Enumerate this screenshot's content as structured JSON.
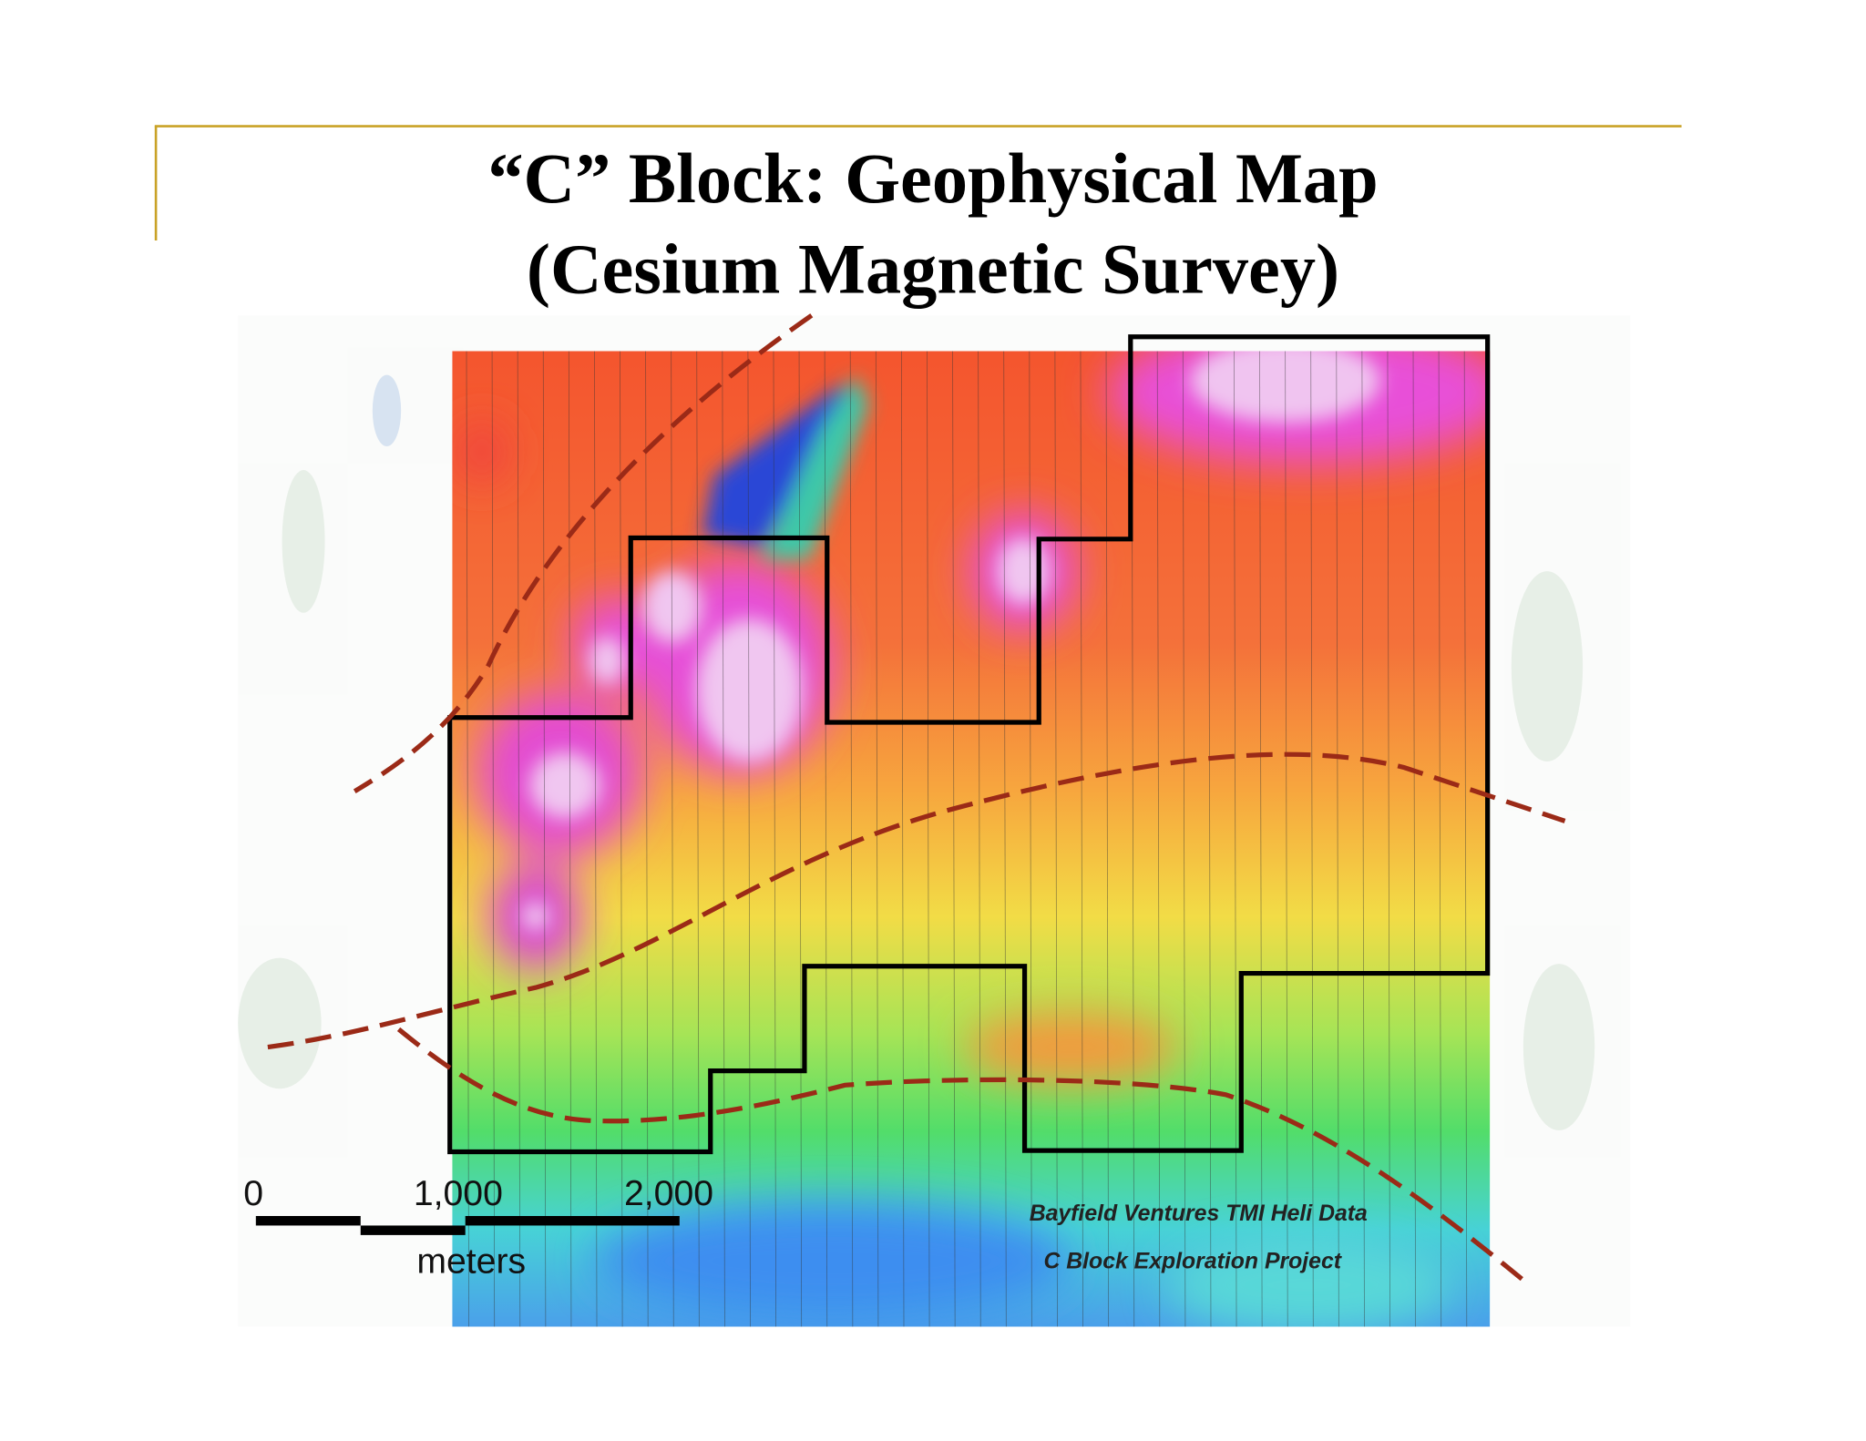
{
  "slide": {
    "title": [
      "“C” Block: Geophysical Map",
      "(Cesium Magnetic Survey)"
    ]
  },
  "map": {
    "scale_bar": {
      "labels": [
        "0",
        "1,000",
        "2,000"
      ],
      "unit": "meters"
    },
    "credits": [
      "Bayfield Ventures TMI Heli Data",
      "C Block Exploration Project"
    ]
  }
}
